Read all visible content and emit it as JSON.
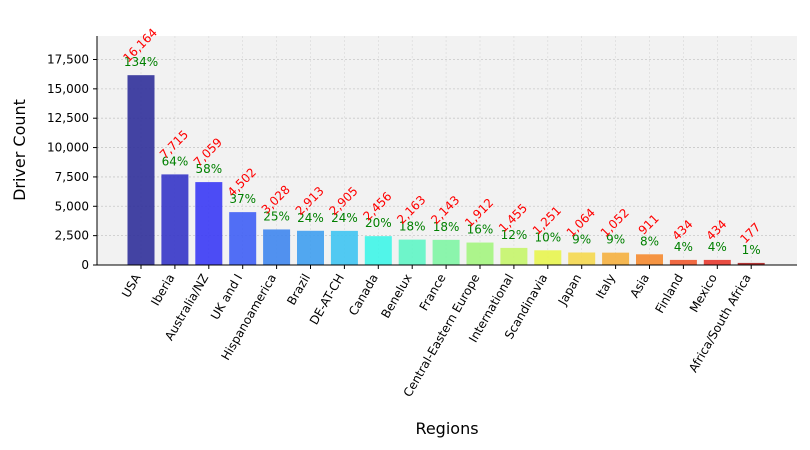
{
  "chart_data": {
    "type": "bar",
    "title": "",
    "xlabel": "Regions",
    "ylabel": "Driver Count",
    "ylim": [
      0,
      19500
    ],
    "yticks": [
      0,
      2500,
      5000,
      7500,
      10000,
      12500,
      15000,
      17500
    ],
    "ytick_labels": [
      "0",
      "2,500",
      "5,000",
      "7,500",
      "10,000",
      "12,500",
      "15,000",
      "17,500"
    ],
    "grid": true,
    "categories": [
      "USA",
      "Iberia",
      "Australia/NZ",
      "UK and I",
      "Hispanoamerica",
      "Brazil",
      "DE-AT-CH",
      "Canada",
      "Benelux",
      "France",
      "Central-Eastern Europe",
      "International",
      "Scandinavia",
      "Japan",
      "Italy",
      "Asia",
      "Finland",
      "Mexico",
      "Africa/South Africa"
    ],
    "values": [
      16164,
      7715,
      7059,
      4502,
      3028,
      2913,
      2905,
      2456,
      2163,
      2143,
      1912,
      1455,
      1251,
      1064,
      1052,
      911,
      434,
      434,
      177
    ],
    "value_labels": [
      "16,164",
      "7,715",
      "7,059",
      "4,502",
      "3,028",
      "2,913",
      "2,905",
      "2,456",
      "2,163",
      "2,143",
      "1,912",
      "1,455",
      "1,251",
      "1,064",
      "1,052",
      "911",
      "434",
      "434",
      "177"
    ],
    "percent_labels": [
      "134%",
      "64%",
      "58%",
      "37%",
      "25%",
      "24%",
      "24%",
      "20%",
      "18%",
      "18%",
      "16%",
      "12%",
      "10%",
      "9%",
      "9%",
      "8%",
      "4%",
      "4%",
      "1%"
    ],
    "bar_colors": [
      "#30309a",
      "#3535c8",
      "#3a3af5",
      "#3f5ff5",
      "#3f86ee",
      "#3f9ef0",
      "#3fc4f2",
      "#3ff5e8",
      "#5ff5c5",
      "#7ff5a4",
      "#a4f57f",
      "#c5f56a",
      "#e8f54f",
      "#f5d84f",
      "#f5b03f",
      "#f5892f",
      "#f05a2f",
      "#e83a2f",
      "#a82020"
    ],
    "value_label_color": "#ff0000",
    "percent_label_color": "#008000",
    "plot_background": "#f2f2f2"
  }
}
